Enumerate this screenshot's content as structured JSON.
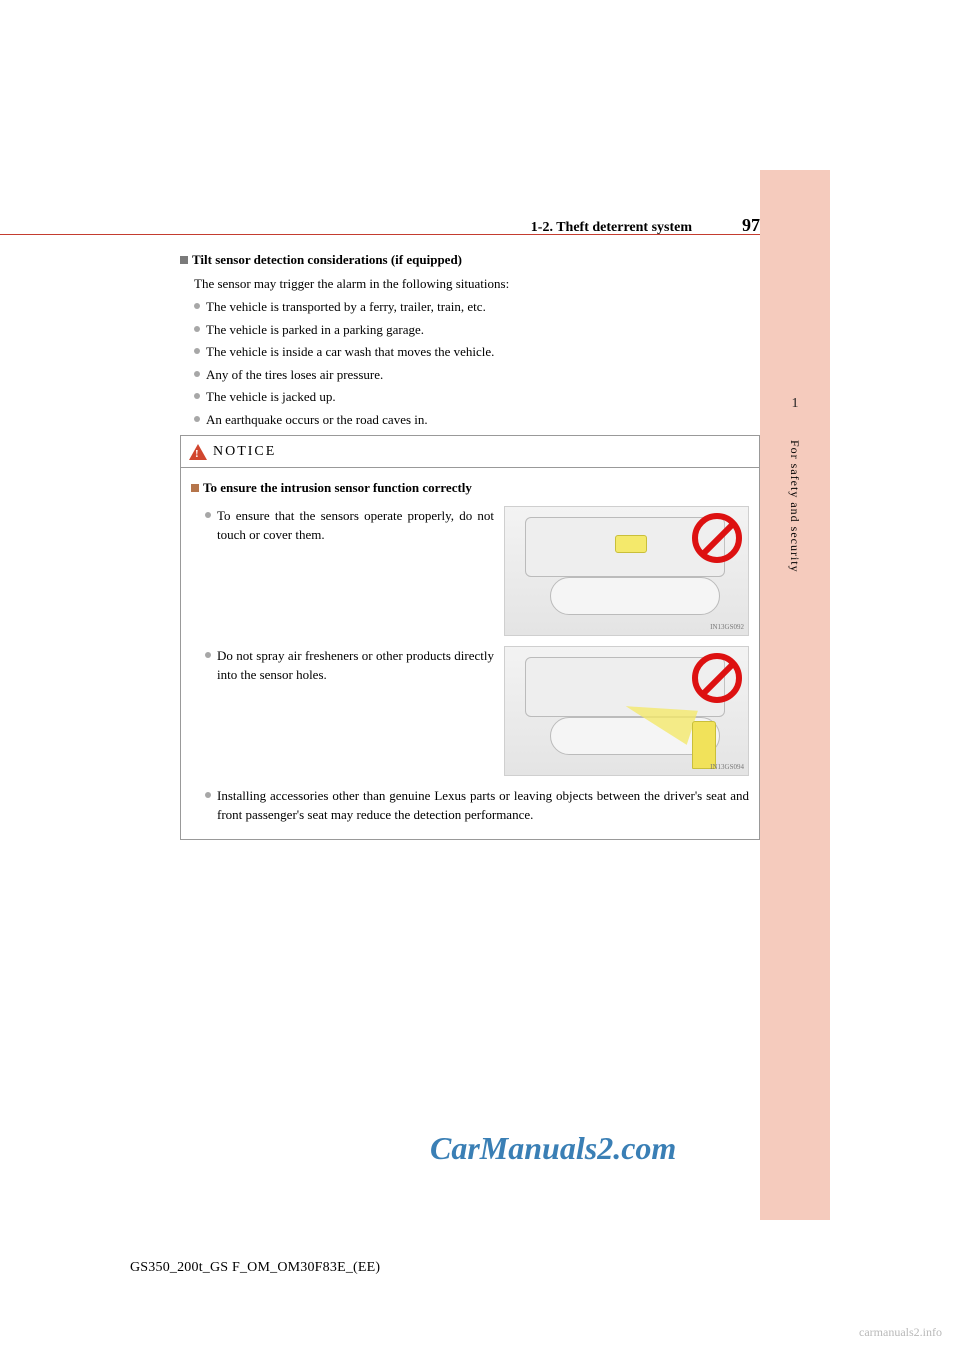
{
  "header": {
    "section_title": "1-2. Theft deterrent system",
    "page_number": "97"
  },
  "sidebar": {
    "chapter_number": "1",
    "chapter_title": "For safety and security",
    "band_color": "#f5cbbd"
  },
  "main": {
    "sub_heading": "Tilt sensor detection considerations (if equipped)",
    "intro": "The sensor may trigger the alarm in the following situations:",
    "bullets": [
      "The vehicle is transported by a ferry, trailer, train, etc.",
      "The vehicle is parked in a parking garage.",
      "The vehicle is inside a car wash that moves the vehicle.",
      "Any of the tires loses air pressure.",
      "The vehicle is jacked up.",
      "An earthquake occurs or the road caves in."
    ]
  },
  "notice": {
    "label": "NOTICE",
    "sub_heading": "To ensure the intrusion sensor function correctly",
    "row1_text": "To ensure that the sensors operate properly, do not touch or cover them.",
    "row1_caption": "IN13GS092",
    "row2_text": "Do not spray air fresheners or other products directly into the sensor holes.",
    "row2_caption": "IN13GS094",
    "full_text": "Installing accessories other than genuine Lexus parts or leaving objects between the driver's seat and front passenger's seat may reduce the detection performance."
  },
  "watermark": "CarManuals2.com",
  "doc_code": "GS350_200t_GS F_OM_OM30F83E_(EE)",
  "footer_wm": "carmanuals2.info"
}
